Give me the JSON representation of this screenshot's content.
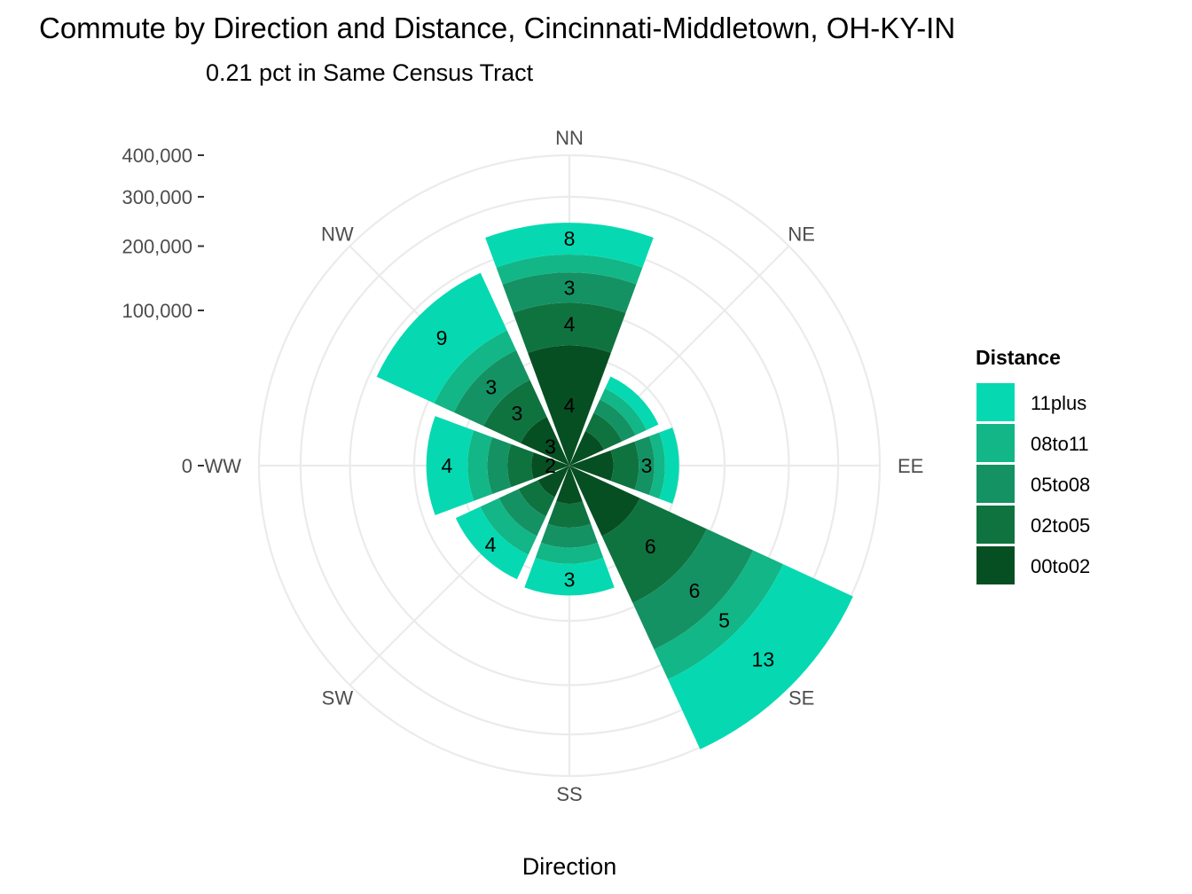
{
  "chart_data": {
    "type": "polar-stacked-bar",
    "title": "Commute by Direction and Distance, Cincinnati-Middletown, OH-KY-IN",
    "subtitle": "0.21 pct in Same Census Tract",
    "xlabel": "Direction",
    "directions": [
      "NN",
      "NE",
      "EE",
      "SE",
      "SS",
      "SW",
      "WW",
      "NW"
    ],
    "y_ticks": [
      0,
      100000,
      200000,
      300000,
      400000
    ],
    "y_tick_labels": [
      "0",
      "100,000",
      "200,000",
      "300,000",
      "400,000"
    ],
    "ylim": [
      0,
      400000
    ],
    "legend_title": "Distance",
    "legend": [
      {
        "name": "11plus",
        "color": "#06D9B1"
      },
      {
        "name": "08to11",
        "color": "#13B686"
      },
      {
        "name": "05to08",
        "color": "#149263"
      },
      {
        "name": "02to05",
        "color": "#0F7340"
      },
      {
        "name": "00to02",
        "color": "#064F22"
      }
    ],
    "series": [
      {
        "name": "00to02",
        "color": "#064F22",
        "values": [
          60000,
          6000,
          8000,
          25000,
          6000,
          5000,
          6000,
          12000
        ]
      },
      {
        "name": "02to05",
        "color": "#0F7340",
        "values": [
          50000,
          8000,
          12000,
          70000,
          10000,
          8000,
          10000,
          25000
        ]
      },
      {
        "name": "05to08",
        "color": "#149263",
        "values": [
          45000,
          8000,
          10000,
          75000,
          12000,
          12000,
          12000,
          30000
        ]
      },
      {
        "name": "08to11",
        "color": "#13B686",
        "values": [
          30000,
          8000,
          8000,
          60000,
          12000,
          15000,
          15000,
          25000
        ]
      },
      {
        "name": "11plus",
        "color": "#06D9B1",
        "values": [
          60000,
          10000,
          12000,
          175000,
          30000,
          25000,
          42000,
          95000
        ]
      }
    ],
    "wedge_labels": {
      "NN": [
        "4",
        "4",
        "3",
        "",
        "8"
      ],
      "EE": [
        "",
        "",
        "3",
        "",
        ""
      ],
      "SE": [
        "",
        "6",
        "6",
        "5",
        "13"
      ],
      "SS": [
        "",
        "",
        "",
        "",
        "3"
      ],
      "SW": [
        "",
        "",
        "",
        "",
        "4"
      ],
      "WW": [
        "2",
        "",
        "",
        "",
        "4"
      ],
      "NW": [
        "3",
        "3",
        "3",
        "",
        "9"
      ]
    }
  }
}
